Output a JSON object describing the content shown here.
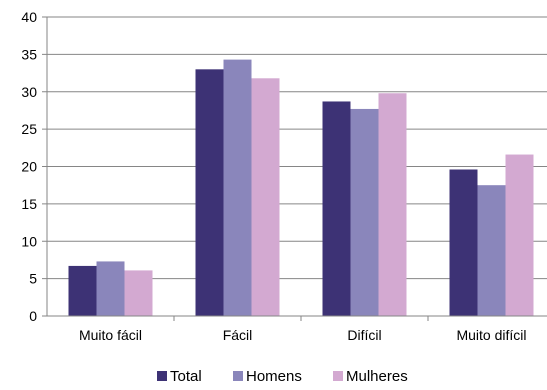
{
  "chart_data": {
    "type": "bar",
    "categories": [
      "Muito fácil",
      "Fácil",
      "Difícil",
      "Muito difícil"
    ],
    "series": [
      {
        "name": "Total",
        "color": "#3d3275",
        "values": [
          6.7,
          33.0,
          28.7,
          19.6
        ]
      },
      {
        "name": "Homens",
        "color": "#8a86bb",
        "values": [
          7.3,
          34.3,
          27.7,
          17.5
        ]
      },
      {
        "name": "Mulheres",
        "color": "#d3a9d1",
        "values": [
          6.1,
          31.8,
          29.8,
          21.6
        ]
      }
    ],
    "title": "",
    "xlabel": "",
    "ylabel": "",
    "ylim": [
      0,
      40
    ],
    "yticks": [
      0,
      5,
      10,
      15,
      20,
      25,
      30,
      35,
      40
    ],
    "grid": true,
    "legend_position": "bottom"
  }
}
